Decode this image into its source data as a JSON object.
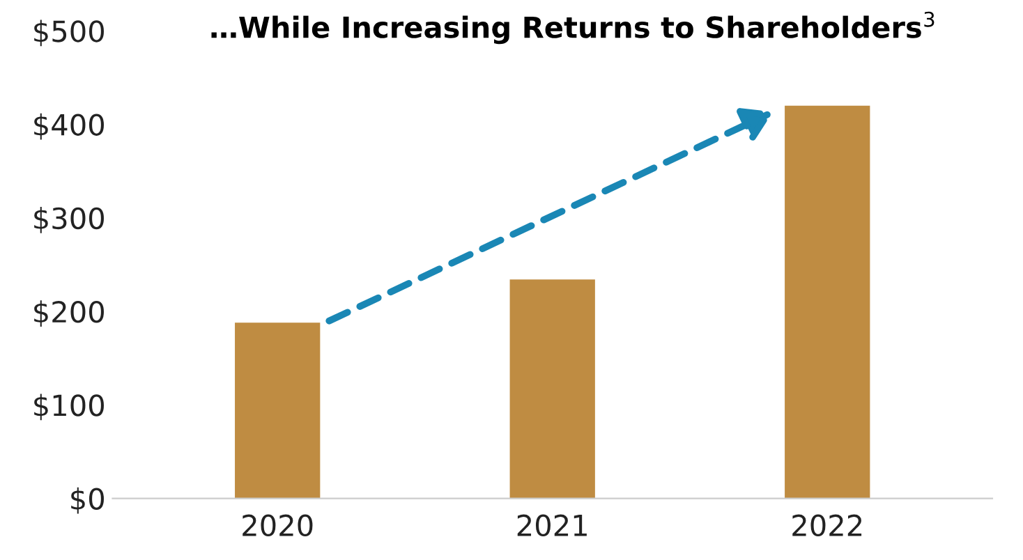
{
  "chart_data": {
    "type": "bar",
    "title": "…While Increasing Returns to Shareholders$^{3}$",
    "categories": [
      "2020",
      "2021",
      "2022"
    ],
    "values": [
      188,
      234,
      420
    ],
    "color": "#bf8c42",
    "ylim": [
      0,
      500
    ],
    "yticks": [
      {
        "value": 0,
        "label": "$0"
      },
      {
        "value": 100,
        "label": "$100"
      },
      {
        "value": 200,
        "label": "$200"
      },
      {
        "value": 300,
        "label": "$300"
      },
      {
        "value": 400,
        "label": "$400"
      },
      {
        "value": 500,
        "label": "$500"
      }
    ],
    "grid": false,
    "legend": false
  }
}
